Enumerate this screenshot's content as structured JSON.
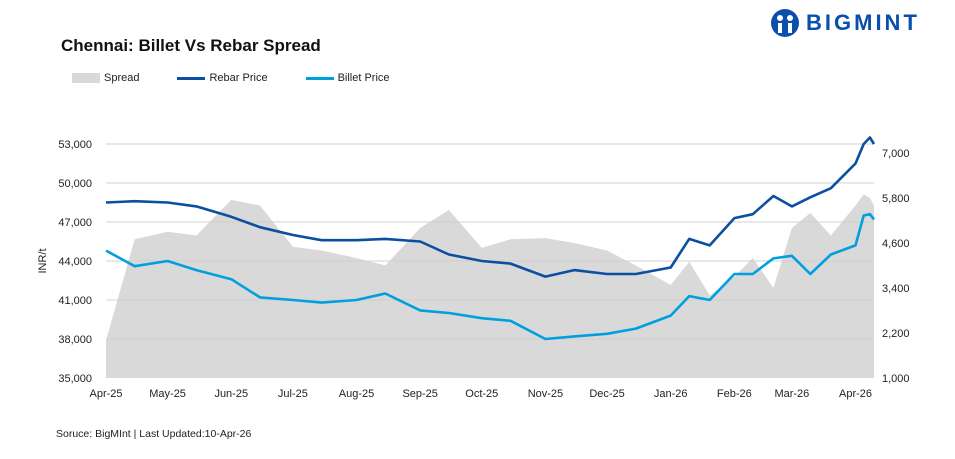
{
  "logo": {
    "text": "BIGMINT",
    "color": "#0a4fae"
  },
  "source": "Soruce: BigMInt | Last Updated:10-Apr-26",
  "chart_data": {
    "type": "line",
    "title": "Chennai: Billet Vs Rebar Spread",
    "ylabel": "INR/t",
    "ylim": [
      35000,
      53000
    ],
    "y2lim": [
      1000,
      7240
    ],
    "yticks": [
      "35,000",
      "38,000",
      "41,000",
      "44,000",
      "47,000",
      "50,000",
      "53,000"
    ],
    "y2ticks": [
      "1,000",
      "2,200",
      "3,400",
      "4,600",
      "5,800",
      "7,000"
    ],
    "xticks": [
      "Apr-25",
      "May-25",
      "Jun-25",
      "Jul-25",
      "Aug-25",
      "Sep-25",
      "Oct-25",
      "Nov-25",
      "Dec-25",
      "Jan-26",
      "Feb-26",
      "Mar-26",
      "Apr-26"
    ],
    "grid": true,
    "legend": "top-left",
    "x": [
      "2025-04-01",
      "2025-04-15",
      "2025-05-01",
      "2025-05-15",
      "2025-06-01",
      "2025-06-15",
      "2025-07-01",
      "2025-07-15",
      "2025-08-01",
      "2025-08-15",
      "2025-09-01",
      "2025-09-15",
      "2025-10-01",
      "2025-10-15",
      "2025-11-01",
      "2025-11-15",
      "2025-12-01",
      "2025-12-15",
      "2026-01-01",
      "2026-01-10",
      "2026-01-20",
      "2026-02-01",
      "2026-02-10",
      "2026-02-20",
      "2026-03-01",
      "2026-03-10",
      "2026-03-20",
      "2026-04-01",
      "2026-04-05",
      "2026-04-08",
      "2026-04-10"
    ],
    "series": [
      {
        "name": "Spread",
        "axis": "right",
        "type": "area",
        "color": "#d9d9d9",
        "values": [
          2000,
          4700,
          4900,
          4800,
          5750,
          5600,
          4500,
          4400,
          4200,
          4000,
          5000,
          5480,
          4470,
          4700,
          4730,
          4600,
          4400,
          4000,
          3480,
          4100,
          3200,
          3700,
          4200,
          3400,
          5000,
          5400,
          4800,
          5600,
          5900,
          5800,
          5600
        ]
      },
      {
        "name": "Rebar Price",
        "axis": "left",
        "color": "#0a4fa0",
        "values": [
          48500,
          48600,
          48500,
          48200,
          47400,
          46600,
          46000,
          45600,
          45600,
          45700,
          45500,
          44500,
          44000,
          43800,
          42800,
          43300,
          43000,
          43000,
          43500,
          45700,
          45200,
          47300,
          47600,
          49000,
          48200,
          48900,
          49600,
          51500,
          53000,
          53500,
          53000
        ]
      },
      {
        "name": "Billet Price",
        "axis": "left",
        "color": "#00a0e0",
        "values": [
          44800,
          43600,
          44000,
          43300,
          42600,
          41200,
          41000,
          40800,
          41000,
          41500,
          40200,
          40000,
          39600,
          39400,
          38000,
          38200,
          38400,
          38800,
          39800,
          41300,
          41000,
          43000,
          43000,
          44200,
          44400,
          43000,
          44500,
          45200,
          47500,
          47600,
          47200
        ]
      }
    ]
  }
}
